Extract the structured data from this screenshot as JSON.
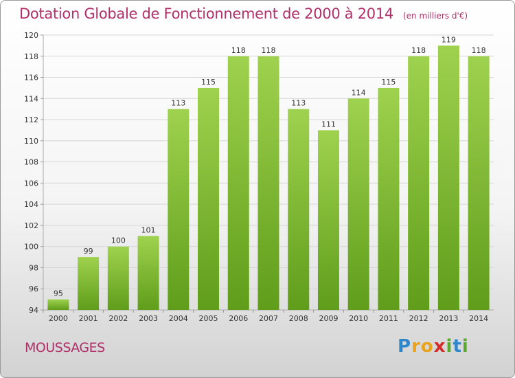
{
  "title": "Dotation Globale de Fonctionnement de 2000 à 2014",
  "unit": "(en milliers d'€)",
  "commune": "MOUSSAGES",
  "logo": {
    "letters": [
      "P",
      "r",
      "o",
      "x",
      "i",
      "t",
      "i"
    ],
    "colors": [
      "#2f86c8",
      "#e8a21b",
      "#e8a21b",
      "#d62b2b",
      "#5aa92f",
      "#2f86c8",
      "#5aa92f"
    ]
  },
  "colors": {
    "bar_top": "#9fd24e",
    "bar_bottom": "#5f9d1a",
    "title": "#b0306a"
  },
  "chart_data": {
    "type": "bar",
    "title": "Dotation Globale de Fonctionnement de 2000 à 2014",
    "categories": [
      "2000",
      "2001",
      "2002",
      "2003",
      "2004",
      "2005",
      "2006",
      "2007",
      "2008",
      "2009",
      "2010",
      "2011",
      "2012",
      "2013",
      "2014"
    ],
    "values": [
      95,
      99,
      100,
      101,
      113,
      115,
      118,
      118,
      113,
      111,
      114,
      115,
      118,
      119,
      118
    ],
    "xlabel": "",
    "ylabel": "",
    "ylim": [
      94,
      120
    ],
    "yticks": [
      94,
      96,
      98,
      100,
      102,
      104,
      106,
      108,
      110,
      112,
      114,
      116,
      118,
      120
    ],
    "grid": true,
    "legend": "none"
  }
}
